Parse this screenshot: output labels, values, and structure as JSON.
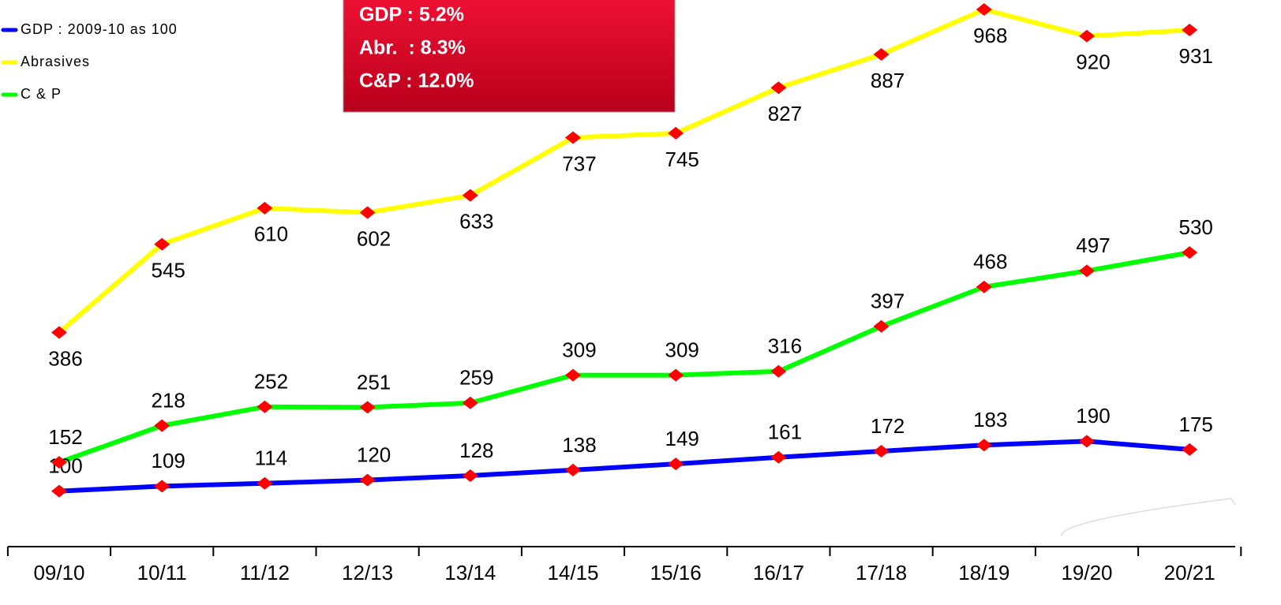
{
  "chart_data": {
    "type": "line",
    "categories": [
      "09/10",
      "10/11",
      "11/12",
      "12/13",
      "13/14",
      "14/15",
      "15/16",
      "16/17",
      "17/18",
      "18/19",
      "19/20",
      "20/21"
    ],
    "series": [
      {
        "name": "GDP : 2009-10 as 100",
        "color": "#0000ff",
        "values": [
          100,
          109,
          114,
          120,
          128,
          138,
          149,
          161,
          172,
          183,
          190,
          175
        ]
      },
      {
        "name": "Abrasives",
        "color": "#ffff00",
        "values": [
          386,
          545,
          610,
          602,
          633,
          737,
          745,
          827,
          887,
          968,
          920,
          931
        ]
      },
      {
        "name": "C & P",
        "color": "#00ff00",
        "values": [
          152,
          218,
          252,
          251,
          259,
          309,
          309,
          316,
          397,
          468,
          497,
          530
        ]
      }
    ],
    "marker_color": "#ff0000",
    "annotations": [
      "GDP : 5.2%",
      "Abr.  : 8.3%",
      "C&P : 12.0%"
    ]
  }
}
